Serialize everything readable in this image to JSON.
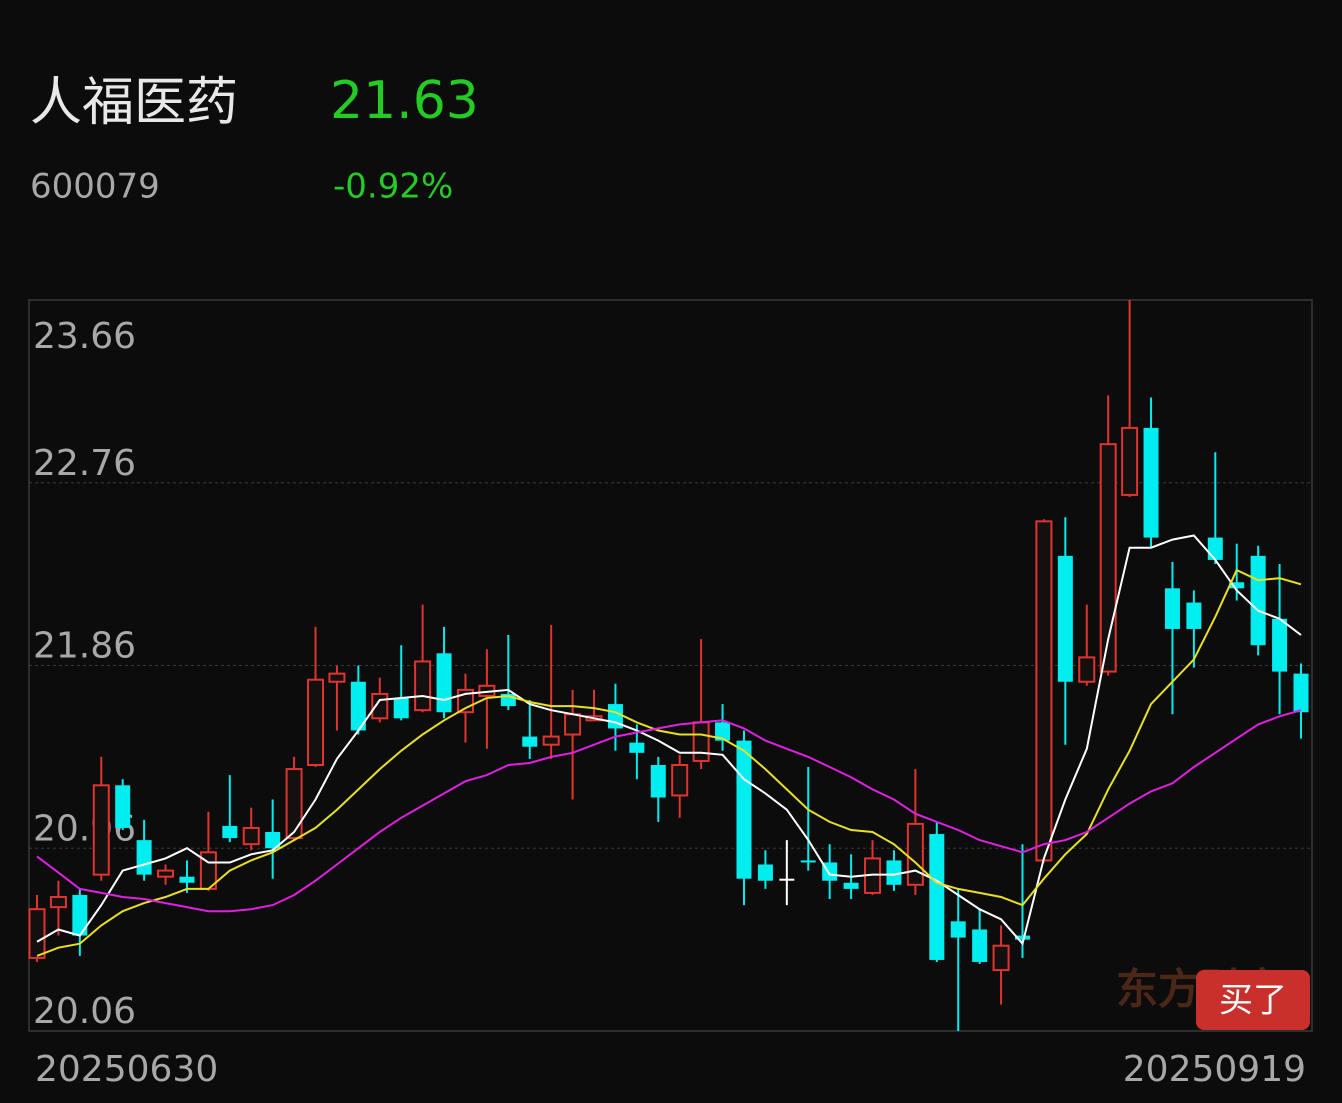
{
  "header": {
    "name": "人福医药",
    "price": "21.63",
    "code": "600079",
    "change": "-0.92%"
  },
  "watermark": "东方财富",
  "button": "买了",
  "chart_data": {
    "type": "candlestick",
    "categories": [
      "20250630",
      null,
      null,
      null,
      null,
      null,
      null,
      null,
      null,
      null,
      null,
      null,
      null,
      null,
      null,
      null,
      null,
      null,
      null,
      null,
      null,
      null,
      null,
      null,
      null,
      null,
      null,
      null,
      null,
      null,
      null,
      null,
      null,
      null,
      null,
      null,
      null,
      null,
      null,
      null,
      null,
      null,
      null,
      null,
      null,
      null,
      null,
      null,
      null,
      null,
      null,
      null,
      null,
      null,
      null,
      null,
      null,
      null,
      null,
      "20250919"
    ],
    "open": [
      20.42,
      20.67,
      20.73,
      20.83,
      21.27,
      21.0,
      20.82,
      20.82,
      20.76,
      21.07,
      20.98,
      21.04,
      21.01,
      21.37,
      21.78,
      21.78,
      21.6,
      21.7,
      21.64,
      21.92,
      21.63,
      21.71,
      21.72,
      21.51,
      21.47,
      21.52,
      21.59,
      21.67,
      21.48,
      21.37,
      21.22,
      21.39,
      21.58,
      21.49,
      20.88,
      20.81,
      20.9,
      20.89,
      20.79,
      20.74,
      20.9,
      20.78,
      21.03,
      20.6,
      20.56,
      20.36,
      20.53,
      20.9,
      22.4,
      21.78,
      21.83,
      22.7,
      23.03,
      22.24,
      22.17,
      22.49,
      22.27,
      22.4,
      22.09,
      21.82
    ],
    "high": [
      20.73,
      20.8,
      20.76,
      21.41,
      21.3,
      21.1,
      20.88,
      20.9,
      21.14,
      21.32,
      21.16,
      21.2,
      21.41,
      22.05,
      21.86,
      21.86,
      21.8,
      21.96,
      22.16,
      22.05,
      21.82,
      21.94,
      22.01,
      21.69,
      22.06,
      21.74,
      21.74,
      21.77,
      21.57,
      21.41,
      21.42,
      21.99,
      21.67,
      21.54,
      20.95,
      21.0,
      21.36,
      20.98,
      20.93,
      21.0,
      20.95,
      21.35,
      21.09,
      20.76,
      20.66,
      20.58,
      20.98,
      22.58,
      22.59,
      22.16,
      23.19,
      23.66,
      23.18,
      22.37,
      22.23,
      22.91,
      22.46,
      22.45,
      22.36,
      21.87
    ],
    "low": [
      20.4,
      20.53,
      20.43,
      20.8,
      21.05,
      20.8,
      20.78,
      20.74,
      20.75,
      20.99,
      20.95,
      20.81,
      21.0,
      21.36,
      21.54,
      21.52,
      21.58,
      21.59,
      21.63,
      21.6,
      21.48,
      21.45,
      21.64,
      21.4,
      21.4,
      21.2,
      21.59,
      21.44,
      21.3,
      21.09,
      21.11,
      21.35,
      21.44,
      20.68,
      20.76,
      20.68,
      20.85,
      20.71,
      20.71,
      20.73,
      20.75,
      20.73,
      20.4,
      20.06,
      20.39,
      20.19,
      20.42,
      20.89,
      21.47,
      21.76,
      21.81,
      22.69,
      22.44,
      21.62,
      21.85,
      22.36,
      22.18,
      21.91,
      21.62,
      21.5
    ],
    "close": [
      20.66,
      20.72,
      20.53,
      21.27,
      21.06,
      20.83,
      20.85,
      20.79,
      20.94,
      21.01,
      21.06,
      20.96,
      21.35,
      21.79,
      21.82,
      21.54,
      21.72,
      21.6,
      21.88,
      21.63,
      21.74,
      21.76,
      21.66,
      21.46,
      21.51,
      21.62,
      21.61,
      21.55,
      21.43,
      21.21,
      21.37,
      21.58,
      21.49,
      20.81,
      20.8,
      20.81,
      20.89,
      20.8,
      20.76,
      20.91,
      20.78,
      21.08,
      20.41,
      20.52,
      20.4,
      20.48,
      20.51,
      22.57,
      21.78,
      21.9,
      22.95,
      23.03,
      22.49,
      22.04,
      22.04,
      22.38,
      22.24,
      21.96,
      21.83,
      21.63
    ],
    "up_color": "#e0342f",
    "down_color": "#00eef0",
    "flat_color": "#ffffff",
    "lines": [
      {
        "color": "#ffffff",
        "values": [
          20.5,
          20.56,
          20.53,
          20.68,
          20.85,
          20.88,
          20.91,
          20.96,
          20.89,
          20.89,
          20.93,
          20.95,
          21.04,
          21.2,
          21.4,
          21.54,
          21.69,
          21.7,
          21.71,
          21.69,
          21.72,
          21.73,
          21.74,
          21.67,
          21.64,
          21.62,
          21.6,
          21.58,
          21.54,
          21.49,
          21.43,
          21.43,
          21.42,
          21.3,
          21.23,
          21.15,
          21.0,
          20.83,
          20.82,
          20.83,
          20.83,
          20.85,
          20.8,
          20.73,
          20.66,
          20.61,
          20.49,
          20.91,
          21.2,
          21.45,
          21.99,
          22.44,
          22.44,
          22.48,
          22.5,
          22.38,
          22.23,
          22.13,
          22.09,
          22.01
        ]
      },
      {
        "color": "#e8e020",
        "values": [
          20.43,
          20.47,
          20.49,
          20.58,
          20.65,
          20.69,
          20.72,
          20.76,
          20.76,
          20.85,
          20.9,
          20.94,
          21.0,
          21.06,
          21.15,
          21.25,
          21.35,
          21.44,
          21.52,
          21.59,
          21.65,
          21.7,
          21.71,
          21.68,
          21.66,
          21.66,
          21.65,
          21.63,
          21.58,
          21.54,
          21.52,
          21.52,
          21.5,
          21.44,
          21.35,
          21.25,
          21.15,
          21.09,
          21.05,
          21.04,
          20.98,
          20.89,
          20.79,
          20.76,
          20.74,
          20.72,
          20.68,
          20.81,
          20.93,
          21.03,
          21.25,
          21.44,
          21.67,
          21.78,
          21.89,
          22.1,
          22.33,
          22.28,
          22.29,
          22.26
        ]
      },
      {
        "color": "#e020e0",
        "values": [
          20.92,
          20.84,
          20.76,
          20.74,
          20.72,
          20.71,
          20.69,
          20.67,
          20.65,
          20.65,
          20.66,
          20.68,
          20.73,
          20.8,
          20.88,
          20.96,
          21.04,
          21.11,
          21.17,
          21.23,
          21.29,
          21.32,
          21.37,
          21.38,
          21.41,
          21.43,
          21.47,
          21.51,
          21.53,
          21.55,
          21.57,
          21.58,
          21.59,
          21.55,
          21.49,
          21.45,
          21.41,
          21.36,
          21.31,
          21.25,
          21.2,
          21.13,
          21.09,
          21.05,
          21.0,
          20.97,
          20.94,
          20.98,
          21.0,
          21.04,
          21.11,
          21.18,
          21.24,
          21.28,
          21.36,
          21.43,
          21.5,
          21.57,
          21.61,
          21.64
        ]
      }
    ],
    "ylim": [
      20.06,
      23.66
    ],
    "yticks": [
      20.06,
      20.96,
      21.86,
      22.76,
      23.66
    ],
    "grid": true
  }
}
